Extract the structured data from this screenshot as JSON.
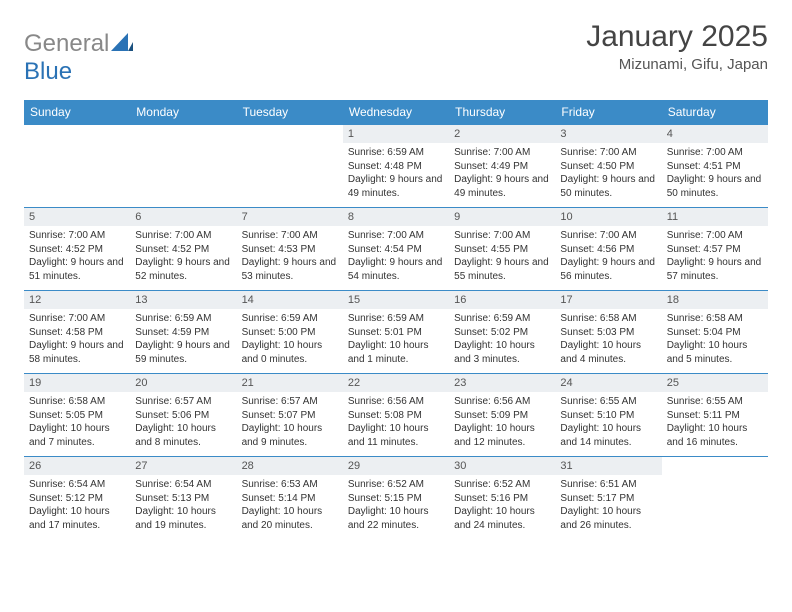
{
  "brand": {
    "part1": "General",
    "part2": "Blue"
  },
  "title": "January 2025",
  "location": "Mizunami, Gifu, Japan",
  "colors": {
    "header_bg": "#3b8bc7",
    "header_text": "#ffffff",
    "daynum_bg": "#eceff2",
    "rule": "#3b8bc7",
    "logo_gray": "#888888",
    "logo_blue": "#2a72b5"
  },
  "day_labels": [
    "Sunday",
    "Monday",
    "Tuesday",
    "Wednesday",
    "Thursday",
    "Friday",
    "Saturday"
  ],
  "weeks": [
    [
      {
        "n": "",
        "sr": "",
        "ss": "",
        "dl": ""
      },
      {
        "n": "",
        "sr": "",
        "ss": "",
        "dl": ""
      },
      {
        "n": "",
        "sr": "",
        "ss": "",
        "dl": ""
      },
      {
        "n": "1",
        "sr": "6:59 AM",
        "ss": "4:48 PM",
        "dl": "9 hours and 49 minutes."
      },
      {
        "n": "2",
        "sr": "7:00 AM",
        "ss": "4:49 PM",
        "dl": "9 hours and 49 minutes."
      },
      {
        "n": "3",
        "sr": "7:00 AM",
        "ss": "4:50 PM",
        "dl": "9 hours and 50 minutes."
      },
      {
        "n": "4",
        "sr": "7:00 AM",
        "ss": "4:51 PM",
        "dl": "9 hours and 50 minutes."
      }
    ],
    [
      {
        "n": "5",
        "sr": "7:00 AM",
        "ss": "4:52 PM",
        "dl": "9 hours and 51 minutes."
      },
      {
        "n": "6",
        "sr": "7:00 AM",
        "ss": "4:52 PM",
        "dl": "9 hours and 52 minutes."
      },
      {
        "n": "7",
        "sr": "7:00 AM",
        "ss": "4:53 PM",
        "dl": "9 hours and 53 minutes."
      },
      {
        "n": "8",
        "sr": "7:00 AM",
        "ss": "4:54 PM",
        "dl": "9 hours and 54 minutes."
      },
      {
        "n": "9",
        "sr": "7:00 AM",
        "ss": "4:55 PM",
        "dl": "9 hours and 55 minutes."
      },
      {
        "n": "10",
        "sr": "7:00 AM",
        "ss": "4:56 PM",
        "dl": "9 hours and 56 minutes."
      },
      {
        "n": "11",
        "sr": "7:00 AM",
        "ss": "4:57 PM",
        "dl": "9 hours and 57 minutes."
      }
    ],
    [
      {
        "n": "12",
        "sr": "7:00 AM",
        "ss": "4:58 PM",
        "dl": "9 hours and 58 minutes."
      },
      {
        "n": "13",
        "sr": "6:59 AM",
        "ss": "4:59 PM",
        "dl": "9 hours and 59 minutes."
      },
      {
        "n": "14",
        "sr": "6:59 AM",
        "ss": "5:00 PM",
        "dl": "10 hours and 0 minutes."
      },
      {
        "n": "15",
        "sr": "6:59 AM",
        "ss": "5:01 PM",
        "dl": "10 hours and 1 minute."
      },
      {
        "n": "16",
        "sr": "6:59 AM",
        "ss": "5:02 PM",
        "dl": "10 hours and 3 minutes."
      },
      {
        "n": "17",
        "sr": "6:58 AM",
        "ss": "5:03 PM",
        "dl": "10 hours and 4 minutes."
      },
      {
        "n": "18",
        "sr": "6:58 AM",
        "ss": "5:04 PM",
        "dl": "10 hours and 5 minutes."
      }
    ],
    [
      {
        "n": "19",
        "sr": "6:58 AM",
        "ss": "5:05 PM",
        "dl": "10 hours and 7 minutes."
      },
      {
        "n": "20",
        "sr": "6:57 AM",
        "ss": "5:06 PM",
        "dl": "10 hours and 8 minutes."
      },
      {
        "n": "21",
        "sr": "6:57 AM",
        "ss": "5:07 PM",
        "dl": "10 hours and 9 minutes."
      },
      {
        "n": "22",
        "sr": "6:56 AM",
        "ss": "5:08 PM",
        "dl": "10 hours and 11 minutes."
      },
      {
        "n": "23",
        "sr": "6:56 AM",
        "ss": "5:09 PM",
        "dl": "10 hours and 12 minutes."
      },
      {
        "n": "24",
        "sr": "6:55 AM",
        "ss": "5:10 PM",
        "dl": "10 hours and 14 minutes."
      },
      {
        "n": "25",
        "sr": "6:55 AM",
        "ss": "5:11 PM",
        "dl": "10 hours and 16 minutes."
      }
    ],
    [
      {
        "n": "26",
        "sr": "6:54 AM",
        "ss": "5:12 PM",
        "dl": "10 hours and 17 minutes."
      },
      {
        "n": "27",
        "sr": "6:54 AM",
        "ss": "5:13 PM",
        "dl": "10 hours and 19 minutes."
      },
      {
        "n": "28",
        "sr": "6:53 AM",
        "ss": "5:14 PM",
        "dl": "10 hours and 20 minutes."
      },
      {
        "n": "29",
        "sr": "6:52 AM",
        "ss": "5:15 PM",
        "dl": "10 hours and 22 minutes."
      },
      {
        "n": "30",
        "sr": "6:52 AM",
        "ss": "5:16 PM",
        "dl": "10 hours and 24 minutes."
      },
      {
        "n": "31",
        "sr": "6:51 AM",
        "ss": "5:17 PM",
        "dl": "10 hours and 26 minutes."
      },
      {
        "n": "",
        "sr": "",
        "ss": "",
        "dl": ""
      }
    ]
  ],
  "labels": {
    "sunrise": "Sunrise: ",
    "sunset": "Sunset: ",
    "daylight": "Daylight: "
  }
}
